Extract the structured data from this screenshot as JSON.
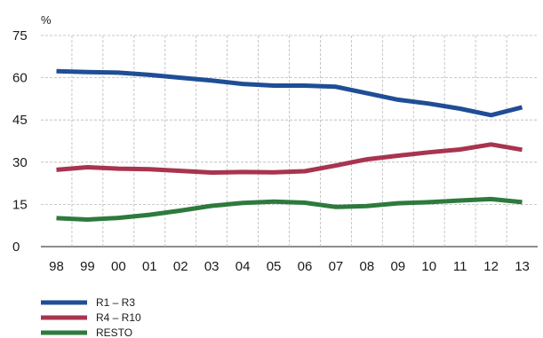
{
  "chart_data": {
    "type": "line",
    "title": "",
    "xlabel": "",
    "ylabel": "%",
    "categories": [
      "98",
      "99",
      "00",
      "01",
      "02",
      "03",
      "04",
      "05",
      "06",
      "07",
      "08",
      "09",
      "10",
      "11",
      "12",
      "13"
    ],
    "ylim": [
      0,
      75
    ],
    "yticks": [
      0,
      15,
      30,
      45,
      60,
      75
    ],
    "grid": true,
    "legend_position": "bottom-left",
    "series": [
      {
        "name": "R1 – R3",
        "color": "#1f4e96",
        "values": [
          62.3,
          62.0,
          61.8,
          61.0,
          60.0,
          59.0,
          57.8,
          57.2,
          57.2,
          56.8,
          54.5,
          52.2,
          50.8,
          49.0,
          46.7,
          49.5
        ]
      },
      {
        "name": "R4 – R10",
        "color": "#a8344f",
        "values": [
          27.3,
          28.2,
          27.7,
          27.5,
          26.9,
          26.3,
          26.5,
          26.4,
          26.8,
          28.8,
          31.0,
          32.3,
          33.5,
          34.5,
          36.3,
          34.4
        ]
      },
      {
        "name": "RESTO",
        "color": "#2d7a3e",
        "values": [
          10.1,
          9.6,
          10.2,
          11.3,
          12.8,
          14.5,
          15.5,
          16.0,
          15.6,
          14.1,
          14.4,
          15.4,
          15.8,
          16.4,
          16.9,
          15.8
        ]
      }
    ]
  }
}
